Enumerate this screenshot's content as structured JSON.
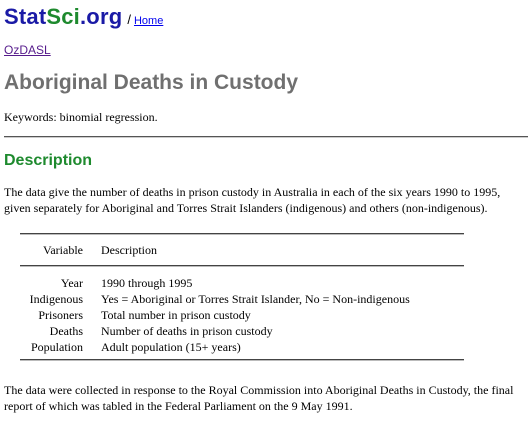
{
  "header": {
    "logo_part1": "Stat",
    "logo_part2": "Sci",
    "logo_part3": ".org",
    "separator": "/",
    "home_link": "Home"
  },
  "nav": {
    "ozdasl_link": "OzDASL"
  },
  "page": {
    "title": "Aboriginal Deaths in Custody",
    "keywords": "Keywords: binomial regression."
  },
  "description": {
    "heading": "Description",
    "intro": "The data give the number of deaths in prison custody in Australia in each of the six years 1990 to 1995, given separately for Aboriginal and Torres Strait Islanders (indigenous) and others (non-indigenous).",
    "table": {
      "headers": [
        "Variable",
        "Description"
      ],
      "rows": [
        [
          "Year",
          "1990 through 1995"
        ],
        [
          "Indigenous",
          "Yes = Aboriginal or Torres Strait Islander, No = Non-indigenous"
        ],
        [
          "Prisoners",
          "Total number in prison custody"
        ],
        [
          "Deaths",
          "Number of deaths in prison custody"
        ],
        [
          "Population",
          "Adult population (15+ years)"
        ]
      ]
    },
    "closing": "The data were collected in response to the Royal Commission into Aboriginal Deaths in Custody, the final report of which was tabled in the Federal Parliament on the 9 May 1991."
  },
  "colors": {
    "logo_blue": "#1a1aa6",
    "logo_green": "#1e8a2e",
    "heading_green": "#1e8a2e",
    "title_gray": "#707070",
    "link_blue": "#0000ee",
    "visited_purple": "#551a8b"
  }
}
